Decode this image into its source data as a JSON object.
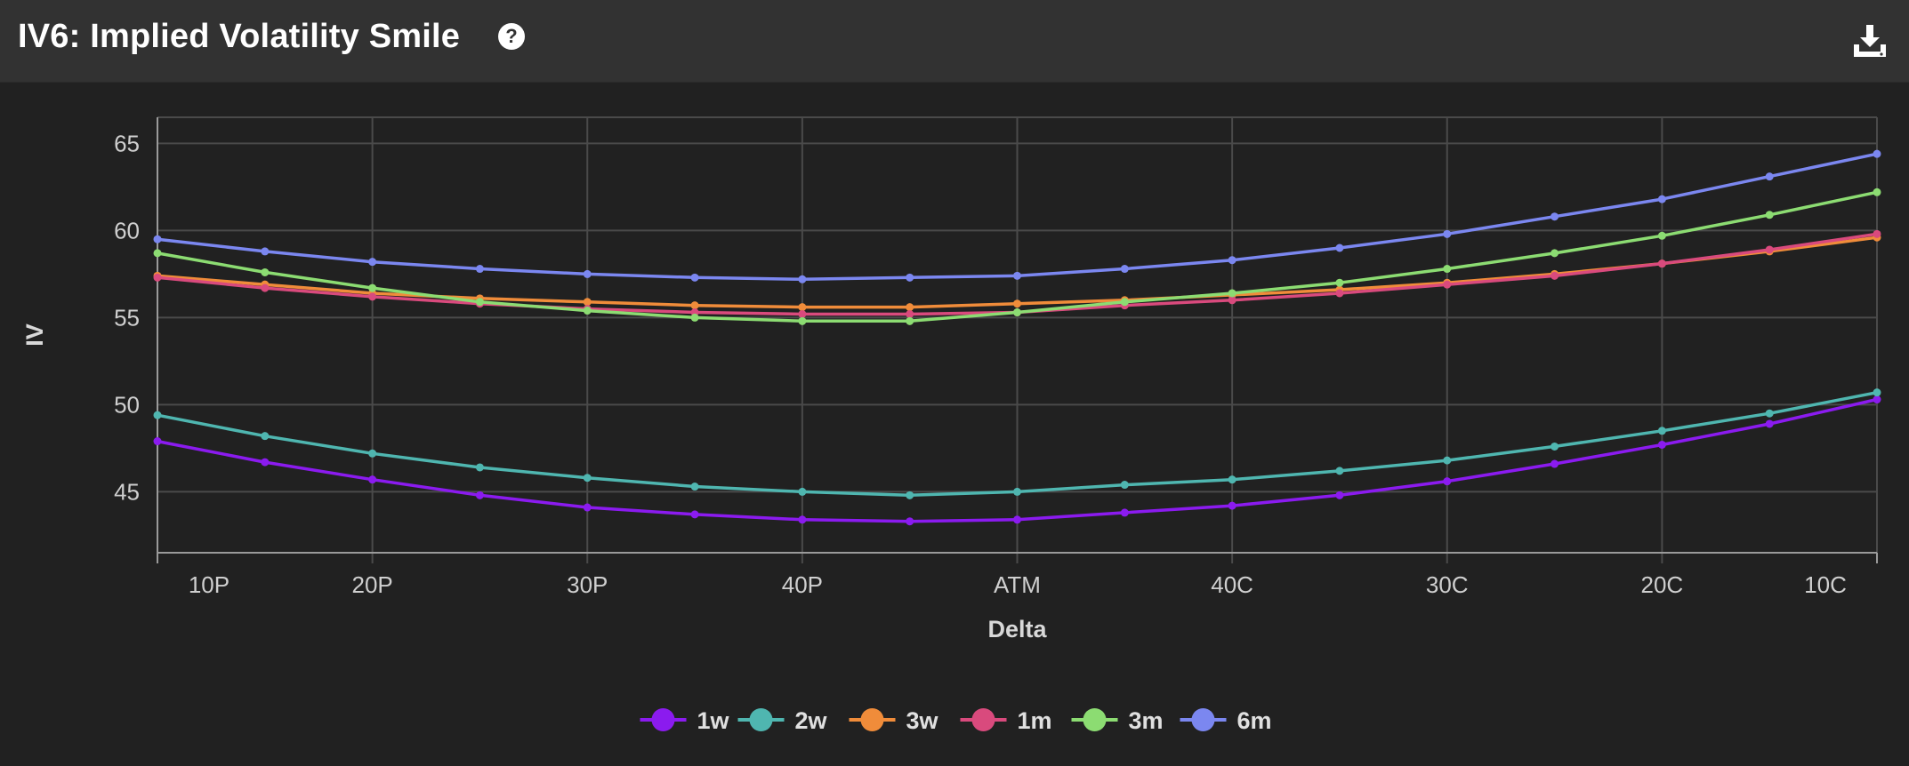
{
  "header": {
    "title": "IV6: Implied Volatility Smile",
    "help_icon": "question-circle-icon",
    "download_icon": "download-icon"
  },
  "colors": {
    "background": "#212121",
    "header_background": "#323232",
    "grid": "#4a4a4a",
    "axis": "#9a9a9a",
    "text": "#cfcfcf"
  },
  "chart_data": {
    "type": "line",
    "title": "IV6: Implied Volatility Smile",
    "xlabel": "Delta",
    "ylabel": "IV",
    "ylim": [
      41.5,
      66.5
    ],
    "yticks": [
      45,
      50,
      55,
      60,
      65
    ],
    "xlim": [
      5,
      45
    ],
    "x": [
      5,
      7.5,
      10,
      12.5,
      15,
      17.5,
      20,
      22.5,
      25,
      27.5,
      30,
      32.5,
      35,
      37.5,
      40,
      42.5,
      45
    ],
    "x_ticks": [
      {
        "x": 6.2,
        "label": "10P"
      },
      {
        "x": 10,
        "label": "20P"
      },
      {
        "x": 15,
        "label": "30P"
      },
      {
        "x": 20,
        "label": "40P"
      },
      {
        "x": 25,
        "label": "ATM"
      },
      {
        "x": 30,
        "label": "40C"
      },
      {
        "x": 35,
        "label": "30C"
      },
      {
        "x": 40,
        "label": "20C"
      },
      {
        "x": 43.8,
        "label": "10C"
      }
    ],
    "grid": true,
    "legend_position": "bottom",
    "series": [
      {
        "name": "1w",
        "color": "#8b1bef",
        "values": [
          47.9,
          46.7,
          45.7,
          44.8,
          44.1,
          43.7,
          43.4,
          43.3,
          43.4,
          43.8,
          44.2,
          44.8,
          45.6,
          46.6,
          47.7,
          48.9,
          50.3
        ]
      },
      {
        "name": "2w",
        "color": "#4fb6b0",
        "values": [
          49.4,
          48.2,
          47.2,
          46.4,
          45.8,
          45.3,
          45.0,
          44.8,
          45.0,
          45.4,
          45.7,
          46.2,
          46.8,
          47.6,
          48.5,
          49.5,
          50.7
        ]
      },
      {
        "name": "3w",
        "color": "#f08c3a",
        "values": [
          57.4,
          56.9,
          56.4,
          56.1,
          55.9,
          55.7,
          55.6,
          55.6,
          55.8,
          56.0,
          56.3,
          56.6,
          57.0,
          57.5,
          58.1,
          58.8,
          59.6
        ]
      },
      {
        "name": "1m",
        "color": "#d94a7d",
        "values": [
          57.3,
          56.7,
          56.2,
          55.8,
          55.5,
          55.3,
          55.2,
          55.2,
          55.3,
          55.7,
          56.0,
          56.4,
          56.9,
          57.4,
          58.1,
          58.9,
          59.8
        ]
      },
      {
        "name": "3m",
        "color": "#8cdc72",
        "values": [
          58.7,
          57.6,
          56.7,
          55.9,
          55.4,
          55.0,
          54.8,
          54.8,
          55.3,
          55.9,
          56.4,
          57.0,
          57.8,
          58.7,
          59.7,
          60.9,
          62.2
        ]
      },
      {
        "name": "6m",
        "color": "#7b87f0",
        "values": [
          59.5,
          58.8,
          58.2,
          57.8,
          57.5,
          57.3,
          57.2,
          57.3,
          57.4,
          57.8,
          58.3,
          59.0,
          59.8,
          60.8,
          61.8,
          63.1,
          64.4
        ]
      }
    ]
  }
}
